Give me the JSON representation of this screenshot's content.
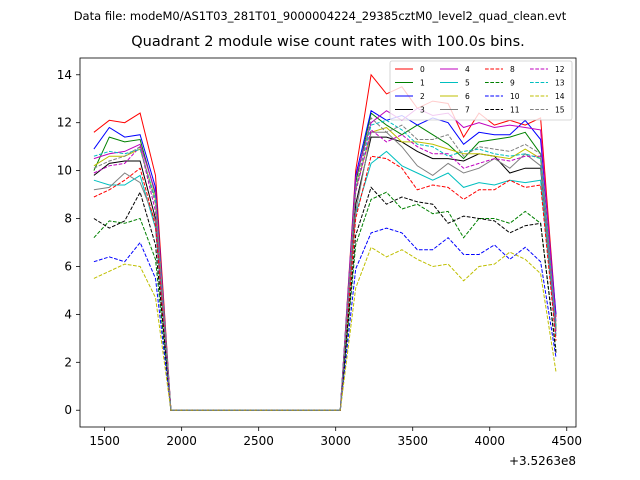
{
  "header": {
    "data_file": "Data file: modeM0/AS1T03_281T01_9000004224_29385cztM0_level2_quad_clean.evt"
  },
  "chart_data": {
    "type": "line",
    "title": "Quadrant 2 module wise count rates with 100.0s bins.",
    "xlabel": "",
    "ylabel": "",
    "x_offset_text": "+3.5263e8",
    "xlim": [
      1340,
      4560
    ],
    "ylim": [
      -0.7,
      14.7
    ],
    "xticks": [
      1500,
      2000,
      2500,
      3000,
      3500,
      4000,
      4500
    ],
    "yticks": [
      0,
      2,
      4,
      6,
      8,
      10,
      12,
      14
    ],
    "grid": false,
    "legend_position": "top-right",
    "x": [
      1430,
      1530,
      1630,
      1730,
      1830,
      1930,
      2030,
      2130,
      2230,
      2330,
      2430,
      2530,
      2630,
      2730,
      2830,
      2930,
      3030,
      3130,
      3230,
      3330,
      3430,
      3530,
      3630,
      3730,
      3830,
      3930,
      4030,
      4130,
      4230,
      4330,
      4430
    ],
    "series": [
      {
        "name": "0",
        "color": "#ff0000",
        "dash": "solid",
        "values": [
          11.6,
          12.1,
          12.0,
          12.4,
          9.8,
          0,
          0,
          0,
          0,
          0,
          0,
          0,
          0,
          0,
          0,
          0,
          0,
          10.0,
          14.0,
          13.2,
          13.5,
          12.6,
          12.9,
          12.8,
          11.4,
          12.4,
          11.9,
          12.1,
          11.9,
          12.2,
          3.9
        ]
      },
      {
        "name": "1",
        "color": "#008000",
        "dash": "solid",
        "values": [
          10.0,
          11.4,
          11.2,
          11.3,
          9.0,
          0,
          0,
          0,
          0,
          0,
          0,
          0,
          0,
          0,
          0,
          0,
          0,
          9.5,
          12.4,
          11.9,
          11.5,
          11.9,
          11.5,
          11.1,
          10.5,
          11.2,
          11.3,
          11.4,
          11.6,
          10.7,
          3.5
        ]
      },
      {
        "name": "2",
        "color": "#0000ff",
        "dash": "solid",
        "values": [
          10.9,
          11.8,
          11.4,
          11.5,
          9.3,
          0,
          0,
          0,
          0,
          0,
          0,
          0,
          0,
          0,
          0,
          0,
          0,
          9.8,
          12.5,
          12.1,
          12.3,
          11.9,
          12.2,
          12.0,
          11.1,
          11.6,
          11.5,
          11.5,
          12.1,
          11.3,
          4.0
        ]
      },
      {
        "name": "3",
        "color": "#000000",
        "dash": "solid",
        "values": [
          9.8,
          10.3,
          10.4,
          10.4,
          8.0,
          0,
          0,
          0,
          0,
          0,
          0,
          0,
          0,
          0,
          0,
          0,
          0,
          8.6,
          11.4,
          11.4,
          11.2,
          10.8,
          10.5,
          10.5,
          10.4,
          10.7,
          10.6,
          9.9,
          10.1,
          10.1,
          3.4
        ]
      },
      {
        "name": "4",
        "color": "#bf00bf",
        "dash": "solid",
        "values": [
          10.5,
          10.7,
          10.8,
          11.1,
          9.1,
          0,
          0,
          0,
          0,
          0,
          0,
          0,
          0,
          0,
          0,
          0,
          0,
          9.7,
          12.0,
          12.5,
          12.1,
          12.6,
          12.3,
          12.4,
          11.8,
          12.0,
          11.8,
          11.9,
          11.8,
          11.7,
          3.7
        ]
      },
      {
        "name": "5",
        "color": "#00bfbf",
        "dash": "solid",
        "values": [
          9.6,
          9.4,
          9.4,
          9.8,
          7.6,
          0,
          0,
          0,
          0,
          0,
          0,
          0,
          0,
          0,
          0,
          0,
          0,
          8.2,
          10.3,
          10.8,
          10.2,
          9.9,
          9.6,
          9.9,
          9.3,
          9.5,
          9.4,
          9.6,
          9.5,
          9.6,
          3.1
        ]
      },
      {
        "name": "6",
        "color": "#bfbf00",
        "dash": "solid",
        "values": [
          10.2,
          10.6,
          10.6,
          10.9,
          8.8,
          0,
          0,
          0,
          0,
          0,
          0,
          0,
          0,
          0,
          0,
          0,
          0,
          9.2,
          11.6,
          11.8,
          11.2,
          11.2,
          11.1,
          10.9,
          10.7,
          10.7,
          10.6,
          10.5,
          10.9,
          10.5,
          3.4
        ]
      },
      {
        "name": "7",
        "color": "#808080",
        "dash": "solid",
        "values": [
          9.2,
          9.3,
          9.9,
          9.5,
          7.9,
          0,
          0,
          0,
          0,
          0,
          0,
          0,
          0,
          0,
          0,
          0,
          0,
          8.3,
          11.6,
          11.6,
          11.0,
          10.2,
          9.8,
          10.3,
          9.9,
          10.1,
          10.5,
          10.1,
          10.7,
          10.2,
          3.3
        ]
      },
      {
        "name": "8",
        "color": "#ff0000",
        "dash": "dashed",
        "values": [
          8.9,
          9.2,
          9.6,
          10.1,
          7.7,
          0,
          0,
          0,
          0,
          0,
          0,
          0,
          0,
          0,
          0,
          0,
          0,
          8.0,
          10.6,
          10.5,
          10.1,
          9.2,
          9.4,
          9.3,
          8.8,
          9.2,
          9.2,
          9.6,
          9.3,
          9.4,
          2.9
        ]
      },
      {
        "name": "9",
        "color": "#008000",
        "dash": "dashed",
        "values": [
          7.2,
          7.9,
          7.8,
          8.0,
          6.3,
          0,
          0,
          0,
          0,
          0,
          0,
          0,
          0,
          0,
          0,
          0,
          0,
          6.9,
          8.8,
          9.1,
          8.4,
          8.6,
          8.2,
          8.3,
          7.2,
          8.0,
          8.0,
          7.8,
          8.3,
          7.8,
          2.5
        ]
      },
      {
        "name": "10",
        "color": "#0000ff",
        "dash": "dashed",
        "values": [
          6.2,
          6.4,
          6.2,
          7.0,
          5.5,
          0,
          0,
          0,
          0,
          0,
          0,
          0,
          0,
          0,
          0,
          0,
          0,
          5.9,
          7.4,
          7.6,
          7.4,
          6.7,
          6.7,
          7.2,
          6.5,
          6.5,
          6.9,
          6.3,
          6.8,
          6.2,
          2.2
        ]
      },
      {
        "name": "11",
        "color": "#000000",
        "dash": "dashed",
        "values": [
          8.0,
          7.6,
          7.9,
          9.1,
          6.9,
          0,
          0,
          0,
          0,
          0,
          0,
          0,
          0,
          0,
          0,
          0,
          0,
          7.3,
          9.3,
          8.6,
          8.9,
          8.7,
          8.6,
          7.8,
          8.1,
          8.0,
          7.9,
          7.4,
          7.7,
          7.8,
          2.4
        ]
      },
      {
        "name": "12",
        "color": "#bf00bf",
        "dash": "dashed",
        "values": [
          9.9,
          10.2,
          10.3,
          11.0,
          8.3,
          0,
          0,
          0,
          0,
          0,
          0,
          0,
          0,
          0,
          0,
          0,
          0,
          9.1,
          11.7,
          11.2,
          11.5,
          11.0,
          10.7,
          10.7,
          10.1,
          10.3,
          10.5,
          10.4,
          10.6,
          10.6,
          3.2
        ]
      },
      {
        "name": "13",
        "color": "#00bfbf",
        "dash": "dashed",
        "values": [
          10.6,
          10.8,
          10.7,
          10.9,
          8.8,
          0,
          0,
          0,
          0,
          0,
          0,
          0,
          0,
          0,
          0,
          0,
          0,
          9.3,
          11.9,
          12.1,
          11.7,
          11.1,
          11.0,
          10.6,
          10.8,
          10.9,
          10.7,
          10.6,
          10.7,
          10.5,
          3.5
        ]
      },
      {
        "name": "14",
        "color": "#bfbf00",
        "dash": "dashed",
        "values": [
          5.5,
          5.8,
          6.1,
          6.0,
          4.7,
          0,
          0,
          0,
          0,
          0,
          0,
          0,
          0,
          0,
          0,
          0,
          0,
          5.1,
          6.8,
          6.4,
          6.7,
          6.3,
          6.0,
          6.1,
          5.4,
          6.0,
          6.1,
          6.6,
          6.3,
          5.7,
          1.6
        ]
      },
      {
        "name": "15",
        "color": "#808080",
        "dash": "dashed",
        "values": [
          10.1,
          10.4,
          10.6,
          11.0,
          8.6,
          0,
          0,
          0,
          0,
          0,
          0,
          0,
          0,
          0,
          0,
          0,
          0,
          9.2,
          12.2,
          11.6,
          11.9,
          11.3,
          11.3,
          11.5,
          10.6,
          11.0,
          10.9,
          10.8,
          11.1,
          10.7,
          3.3
        ]
      }
    ]
  }
}
